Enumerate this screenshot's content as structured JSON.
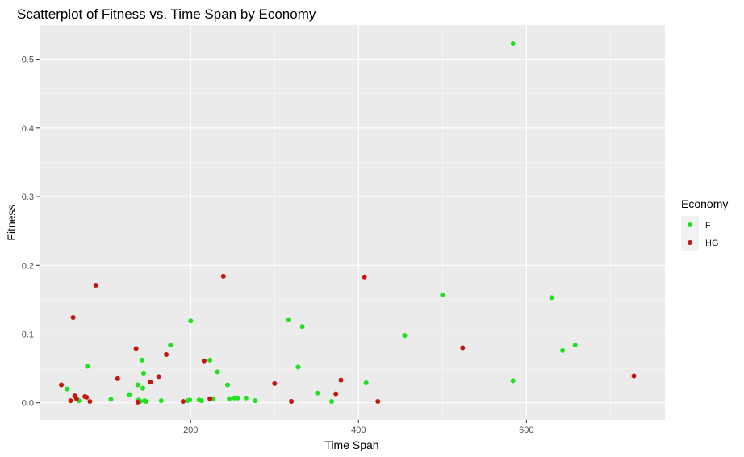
{
  "chart_data": {
    "type": "scatter",
    "title": "Scatterplot of Fitness vs. Time Span by Economy",
    "xlabel": "Time Span",
    "ylabel": "Fitness",
    "xlim": [
      20,
      765
    ],
    "ylim": [
      -0.025,
      0.55
    ],
    "x_ticks": [
      200,
      400,
      600
    ],
    "y_ticks": [
      0.0,
      0.1,
      0.2,
      0.3,
      0.4,
      0.5
    ],
    "y_tick_labels": [
      "0.0",
      "0.1",
      "0.2",
      "0.3",
      "0.4",
      "0.5"
    ],
    "grid": true,
    "legend": {
      "title": "Economy",
      "position": "right"
    },
    "series": [
      {
        "name": "F",
        "color": "#1ee21e",
        "points": [
          [
            53,
            0.02
          ],
          [
            67,
            0.003
          ],
          [
            77,
            0.053
          ],
          [
            105,
            0.005
          ],
          [
            127,
            0.012
          ],
          [
            137,
            0.026
          ],
          [
            138,
            0.004
          ],
          [
            140,
            0.002
          ],
          [
            142,
            0.062
          ],
          [
            143,
            0.021
          ],
          [
            144,
            0.043
          ],
          [
            145,
            0.003
          ],
          [
            147,
            0.002
          ],
          [
            165,
            0.003
          ],
          [
            176,
            0.084
          ],
          [
            196,
            0.003
          ],
          [
            199,
            0.004
          ],
          [
            200,
            0.119
          ],
          [
            210,
            0.004
          ],
          [
            213,
            0.003
          ],
          [
            223,
            0.062
          ],
          [
            227,
            0.006
          ],
          [
            232,
            0.045
          ],
          [
            244,
            0.026
          ],
          [
            246,
            0.006
          ],
          [
            252,
            0.007
          ],
          [
            256,
            0.007
          ],
          [
            266,
            0.007
          ],
          [
            277,
            0.003
          ],
          [
            317,
            0.121
          ],
          [
            328,
            0.052
          ],
          [
            333,
            0.111
          ],
          [
            351,
            0.014
          ],
          [
            368,
            0.002
          ],
          [
            409,
            0.029
          ],
          [
            455,
            0.098
          ],
          [
            500,
            0.157
          ],
          [
            584,
            0.523
          ],
          [
            584,
            0.032
          ],
          [
            630,
            0.153
          ],
          [
            643,
            0.076
          ],
          [
            658,
            0.084
          ]
        ]
      },
      {
        "name": "HG",
        "color": "#c4160f",
        "points": [
          [
            46,
            0.026
          ],
          [
            57,
            0.003
          ],
          [
            60,
            0.124
          ],
          [
            62,
            0.01
          ],
          [
            64,
            0.006
          ],
          [
            74,
            0.009
          ],
          [
            76,
            0.008
          ],
          [
            80,
            0.002
          ],
          [
            87,
            0.171
          ],
          [
            113,
            0.035
          ],
          [
            135,
            0.079
          ],
          [
            137,
            0.001
          ],
          [
            152,
            0.03
          ],
          [
            162,
            0.038
          ],
          [
            171,
            0.07
          ],
          [
            191,
            0.002
          ],
          [
            216,
            0.061
          ],
          [
            223,
            0.006
          ],
          [
            239,
            0.184
          ],
          [
            300,
            0.028
          ],
          [
            320,
            0.002
          ],
          [
            373,
            0.013
          ],
          [
            379,
            0.033
          ],
          [
            407,
            0.183
          ],
          [
            423,
            0.002
          ],
          [
            524,
            0.08
          ],
          [
            728,
            0.039
          ]
        ]
      }
    ]
  }
}
